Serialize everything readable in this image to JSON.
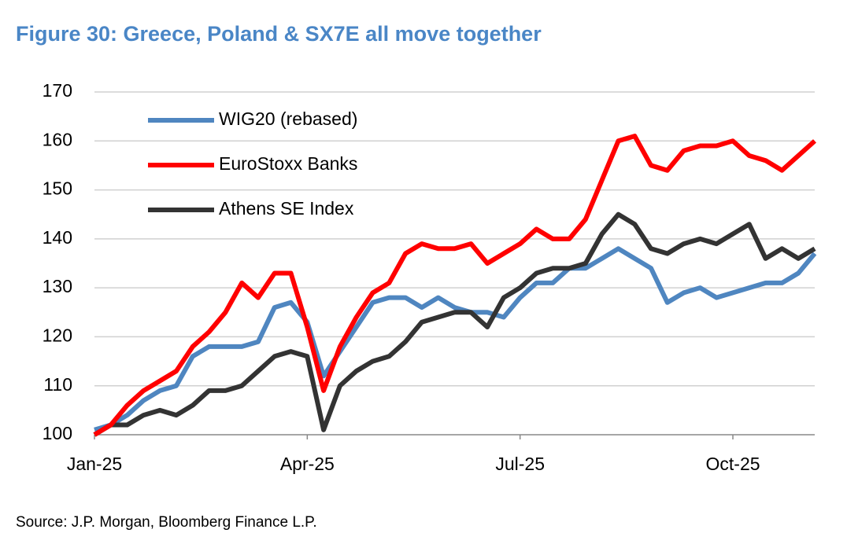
{
  "chart_data": {
    "type": "line",
    "title": "Figure 30: Greece, Poland & SX7E all move together",
    "source": "Source: J.P. Morgan, Bloomberg Finance L.P.",
    "categories": [
      "Jan-25",
      null,
      null,
      null,
      null,
      null,
      null,
      null,
      null,
      null,
      null,
      null,
      null,
      "Apr-25",
      null,
      null,
      null,
      null,
      null,
      null,
      null,
      null,
      null,
      null,
      null,
      null,
      "Jul-25",
      null,
      null,
      null,
      null,
      null,
      null,
      null,
      null,
      null,
      null,
      null,
      null,
      "Oct-25",
      null,
      null,
      null,
      null,
      null
    ],
    "series": [
      {
        "name": "WIG20 (rebased)",
        "color": "#4f86c0",
        "values": [
          101,
          102,
          104,
          107,
          109,
          110,
          116,
          118,
          118,
          118,
          119,
          126,
          127,
          123,
          112,
          117,
          122,
          127,
          128,
          128,
          126,
          128,
          126,
          125,
          125,
          124,
          128,
          131,
          131,
          134,
          134,
          136,
          138,
          136,
          134,
          127,
          129,
          130,
          128,
          129,
          130,
          131,
          131,
          133,
          137
        ]
      },
      {
        "name": "EuroStoxx Banks",
        "color": "#ff0000",
        "values": [
          100,
          102,
          106,
          109,
          111,
          113,
          118,
          121,
          125,
          131,
          128,
          133,
          133,
          122,
          109,
          118,
          124,
          129,
          131,
          137,
          139,
          138,
          138,
          139,
          135,
          137,
          139,
          142,
          140,
          140,
          144,
          152,
          160,
          161,
          155,
          154,
          158,
          159,
          159,
          160,
          157,
          156,
          154,
          157,
          160
        ]
      },
      {
        "name": "Athens SE Index",
        "color": "#333333",
        "values": [
          100,
          102,
          102,
          104,
          105,
          104,
          106,
          109,
          109,
          110,
          113,
          116,
          117,
          116,
          101,
          110,
          113,
          115,
          116,
          119,
          123,
          124,
          125,
          125,
          122,
          128,
          130,
          133,
          134,
          134,
          135,
          141,
          145,
          143,
          138,
          137,
          139,
          140,
          139,
          141,
          143,
          136,
          138,
          136,
          138
        ]
      }
    ],
    "ylim": [
      100,
      170
    ],
    "yticks": [
      100,
      110,
      120,
      130,
      140,
      150,
      160,
      170
    ],
    "grid": true,
    "legend": "upper left"
  }
}
